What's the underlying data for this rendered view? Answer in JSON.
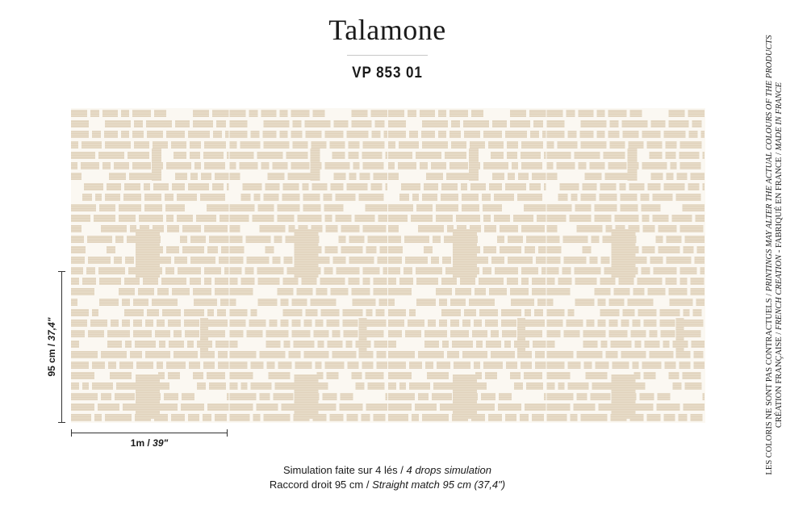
{
  "title": "Talamone",
  "reference": "VP 853 01",
  "dimensions": {
    "height_label": "95 cm /",
    "height_label_imperial": "37,4\"",
    "width_label": "1m /",
    "width_label_imperial": "39\""
  },
  "caption": {
    "line1_fr": "Simulation faite sur 4 lés /",
    "line1_en": "4 drops simulation",
    "line2_fr": "Raccord droit 95 cm /",
    "line2_en": "Straight match 95 cm (37,4\")"
  },
  "side_notice": {
    "line1_fr": "LES COLORIS NE SONT PAS CONTRACTUELS /",
    "line1_en": "PRINTINGS MAY ALTER THE ACTUAL COLOURS OF THE PRODUCTS",
    "line2_fr": "CRÉATION FRANÇAISE /",
    "line2_en": "FRENCH CREATION",
    "line2_fr2": "- FABRIQUÉ EN FRANCE /",
    "line2_en2": "MADE IN FRANCE"
  },
  "colors": {
    "pattern_background": "#fbf8f2",
    "tile_fill": "#e6dac6",
    "tile_fill_dark": "#ddcfb7",
    "text": "#1a1a1a"
  },
  "pattern": {
    "name": "grasscloth-block-lattice",
    "drops": 4
  }
}
